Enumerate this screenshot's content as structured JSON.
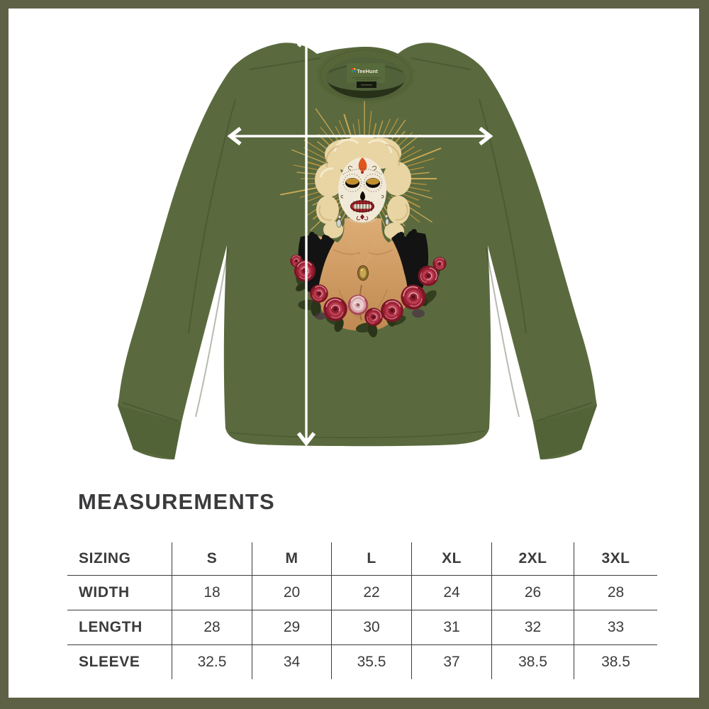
{
  "page": {
    "background": "#ffffff",
    "frame_color": "#5f6147"
  },
  "heading": {
    "title": "MEASUREMENTS"
  },
  "shirt": {
    "brand_label": "TeeHunt",
    "fabric_color": "#5a6a3e",
    "arrow_color": "#ffffff",
    "graphic": "sugar-skull-woman-with-gold-halo-and-roses"
  },
  "size_table": {
    "corner_label": "SIZING",
    "columns": [
      "S",
      "M",
      "L",
      "XL",
      "2XL",
      "3XL"
    ],
    "rows": [
      {
        "label": "WIDTH",
        "values": [
          "18",
          "20",
          "22",
          "24",
          "26",
          "28"
        ]
      },
      {
        "label": "LENGTH",
        "values": [
          "28",
          "29",
          "30",
          "31",
          "32",
          "33"
        ]
      },
      {
        "label": "SLEEVE",
        "values": [
          "32.5",
          "34",
          "35.5",
          "37",
          "38.5",
          "38.5"
        ]
      }
    ]
  },
  "chart_data": {
    "type": "table",
    "title": "MEASUREMENTS",
    "columns": [
      "SIZING",
      "S",
      "M",
      "L",
      "XL",
      "2XL",
      "3XL"
    ],
    "rows": [
      [
        "WIDTH",
        18,
        20,
        22,
        24,
        26,
        28
      ],
      [
        "LENGTH",
        28,
        29,
        30,
        31,
        32,
        33
      ],
      [
        "SLEEVE",
        32.5,
        34,
        35.5,
        37,
        38.5,
        38.5
      ]
    ]
  }
}
